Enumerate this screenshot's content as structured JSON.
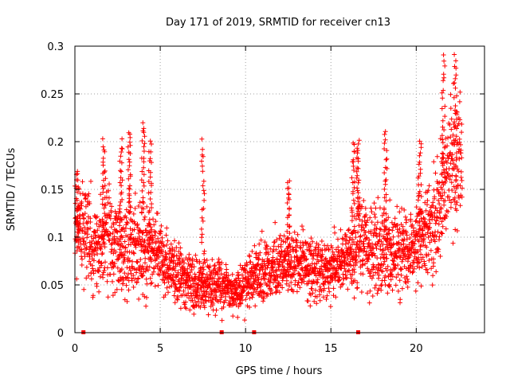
{
  "chart_data": {
    "type": "scatter",
    "title": "Day 171 of 2019, SRMTID for receiver cn13",
    "xlabel": "GPS time / hours",
    "ylabel": "SRMTID / TECUs",
    "xlim": [
      0,
      24
    ],
    "ylim": [
      0,
      0.3
    ],
    "x_ticks": [
      0,
      5,
      10,
      15,
      20
    ],
    "x_tick_labels": [
      "0",
      "5",
      "10",
      "15",
      "20"
    ],
    "y_ticks": [
      0,
      0.05,
      0.1,
      0.15,
      0.2,
      0.25,
      0.3
    ],
    "y_tick_labels": [
      "0",
      "0.05",
      "0.1",
      "0.15",
      "0.2",
      "0.25",
      "0.3"
    ],
    "grid": true,
    "series": [
      {
        "name": "SRMTID",
        "marker": "+",
        "color": "#ff0000",
        "profile": {
          "x": [
            0,
            0.5,
            1,
            1.5,
            2,
            2.5,
            3,
            3.5,
            4,
            4.5,
            5,
            5.5,
            6,
            6.5,
            7,
            7.5,
            8,
            8.5,
            9,
            9.5,
            10,
            10.5,
            11,
            11.5,
            12,
            12.5,
            13,
            13.5,
            14,
            14.5,
            15,
            15.5,
            16,
            16.5,
            17,
            17.5,
            18,
            18.5,
            19,
            19.5,
            20,
            20.5,
            21,
            21.5,
            22,
            22.5
          ],
          "y": [
            0.115,
            0.11,
            0.095,
            0.09,
            0.1,
            0.09,
            0.085,
            0.09,
            0.085,
            0.085,
            0.08,
            0.065,
            0.06,
            0.055,
            0.05,
            0.05,
            0.05,
            0.05,
            0.045,
            0.04,
            0.05,
            0.06,
            0.065,
            0.07,
            0.07,
            0.075,
            0.075,
            0.07,
            0.065,
            0.065,
            0.065,
            0.07,
            0.085,
            0.09,
            0.095,
            0.09,
            0.09,
            0.085,
            0.08,
            0.085,
            0.1,
            0.105,
            0.11,
            0.14,
            0.17,
            0.19
          ],
          "spread": [
            0.03,
            0.03,
            0.03,
            0.03,
            0.03,
            0.03,
            0.03,
            0.03,
            0.03,
            0.028,
            0.025,
            0.02,
            0.02,
            0.02,
            0.02,
            0.018,
            0.018,
            0.018,
            0.015,
            0.015,
            0.018,
            0.02,
            0.02,
            0.02,
            0.02,
            0.02,
            0.02,
            0.02,
            0.02,
            0.02,
            0.02,
            0.02,
            0.025,
            0.03,
            0.03,
            0.03,
            0.03,
            0.03,
            0.03,
            0.03,
            0.03,
            0.03,
            0.035,
            0.04,
            0.045,
            0.04
          ]
        },
        "n_points": 2700,
        "x_end": 22.7,
        "bursts": [
          {
            "x": 0.15,
            "y_min": 0.09,
            "y_max": 0.17
          },
          {
            "x": 1.7,
            "y_min": 0.1,
            "y_max": 0.2
          },
          {
            "x": 2.7,
            "y_min": 0.1,
            "y_max": 0.2
          },
          {
            "x": 3.2,
            "y_min": 0.12,
            "y_max": 0.21
          },
          {
            "x": 4.0,
            "y_min": 0.12,
            "y_max": 0.22
          },
          {
            "x": 4.4,
            "y_min": 0.1,
            "y_max": 0.2
          },
          {
            "x": 7.5,
            "y_min": 0.06,
            "y_max": 0.2
          },
          {
            "x": 12.5,
            "y_min": 0.08,
            "y_max": 0.16
          },
          {
            "x": 16.3,
            "y_min": 0.1,
            "y_max": 0.2
          },
          {
            "x": 16.6,
            "y_min": 0.12,
            "y_max": 0.2
          },
          {
            "x": 18.2,
            "y_min": 0.1,
            "y_max": 0.21
          },
          {
            "x": 20.2,
            "y_min": 0.1,
            "y_max": 0.2
          },
          {
            "x": 21.6,
            "y_min": 0.15,
            "y_max": 0.29
          },
          {
            "x": 22.3,
            "y_min": 0.16,
            "y_max": 0.29
          }
        ]
      },
      {
        "name": "zero-level markers",
        "marker": "square",
        "color": "#ff0000",
        "x": [
          0.5,
          8.6,
          10.5,
          16.6
        ],
        "y": [
          0,
          0,
          0,
          0
        ]
      }
    ]
  }
}
